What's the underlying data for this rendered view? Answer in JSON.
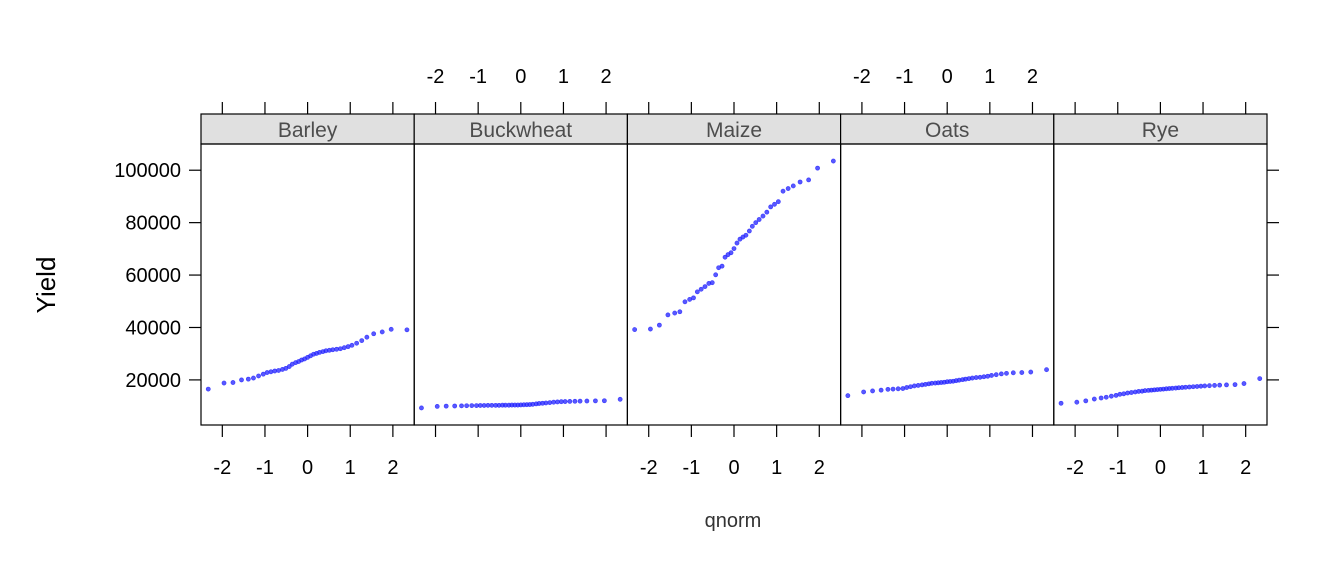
{
  "chart_data": {
    "type": "scatter",
    "xlabel": "qnorm",
    "ylabel": "Yield",
    "xlim": [
      -2.5,
      2.5
    ],
    "ylim": [
      2800,
      110000
    ],
    "x_ticks": [
      -2,
      -1,
      0,
      1,
      2
    ],
    "y_ticks": [
      20000,
      40000,
      60000,
      80000,
      100000
    ],
    "point_color": "#2020ff",
    "strip_color": "#e0e0e0",
    "panels": [
      {
        "name": "Barley",
        "x": [
          -2.33,
          -1.96,
          -1.75,
          -1.55,
          -1.39,
          -1.27,
          -1.15,
          -1.04,
          -0.95,
          -0.86,
          -0.77,
          -0.68,
          -0.59,
          -0.51,
          -0.43,
          -0.36,
          -0.28,
          -0.21,
          -0.14,
          -0.07,
          0.0,
          0.07,
          0.14,
          0.21,
          0.28,
          0.36,
          0.43,
          0.51,
          0.59,
          0.68,
          0.77,
          0.86,
          0.95,
          1.04,
          1.15,
          1.27,
          1.39,
          1.55,
          1.75,
          1.96,
          2.33
        ],
        "y": [
          16500,
          18800,
          19000,
          20000,
          20300,
          20700,
          21500,
          22200,
          22800,
          23100,
          23400,
          23600,
          24000,
          24400,
          25100,
          26000,
          26600,
          27000,
          27600,
          28000,
          28600,
          29200,
          29800,
          30100,
          30500,
          30800,
          31100,
          31300,
          31500,
          31700,
          31900,
          32300,
          32700,
          33200,
          34000,
          35000,
          36300,
          37600,
          38300,
          39300,
          39100
        ]
      },
      {
        "name": "Buckwheat",
        "x": [
          -2.33,
          -1.96,
          -1.75,
          -1.55,
          -1.39,
          -1.27,
          -1.15,
          -1.04,
          -0.95,
          -0.86,
          -0.77,
          -0.68,
          -0.59,
          -0.51,
          -0.43,
          -0.36,
          -0.28,
          -0.21,
          -0.14,
          -0.07,
          0.0,
          0.07,
          0.14,
          0.21,
          0.28,
          0.36,
          0.43,
          0.51,
          0.59,
          0.68,
          0.77,
          0.86,
          0.95,
          1.04,
          1.15,
          1.27,
          1.39,
          1.55,
          1.75,
          1.96,
          2.33
        ],
        "y": [
          9300,
          9900,
          10000,
          10050,
          10100,
          10150,
          10200,
          10200,
          10250,
          10250,
          10300,
          10300,
          10300,
          10300,
          10350,
          10350,
          10350,
          10400,
          10400,
          10400,
          10450,
          10500,
          10550,
          10600,
          10700,
          10850,
          11000,
          11100,
          11200,
          11350,
          11500,
          11600,
          11700,
          11750,
          11800,
          11850,
          11900,
          11950,
          12000,
          12050,
          12600
        ]
      },
      {
        "name": "Maize",
        "x": [
          -2.33,
          -1.96,
          -1.75,
          -1.55,
          -1.39,
          -1.27,
          -1.15,
          -1.04,
          -0.95,
          -0.86,
          -0.77,
          -0.68,
          -0.59,
          -0.51,
          -0.43,
          -0.36,
          -0.28,
          -0.21,
          -0.14,
          -0.07,
          0.0,
          0.07,
          0.14,
          0.21,
          0.28,
          0.36,
          0.43,
          0.51,
          0.59,
          0.68,
          0.77,
          0.86,
          0.95,
          1.04,
          1.15,
          1.27,
          1.39,
          1.55,
          1.75,
          1.96,
          2.33
        ],
        "y": [
          39200,
          39400,
          40900,
          44800,
          45500,
          46000,
          49800,
          50700,
          51300,
          53600,
          54600,
          55600,
          56800,
          57100,
          60100,
          62800,
          63400,
          66800,
          67800,
          68500,
          70100,
          72200,
          73700,
          74500,
          75200,
          76800,
          78600,
          80000,
          81200,
          82500,
          84000,
          86000,
          87000,
          88000,
          92000,
          93000,
          94000,
          95500,
          96300,
          100800,
          103500
        ]
      },
      {
        "name": "Oats",
        "x": [
          -2.33,
          -1.96,
          -1.75,
          -1.55,
          -1.39,
          -1.27,
          -1.15,
          -1.04,
          -0.95,
          -0.86,
          -0.77,
          -0.68,
          -0.59,
          -0.51,
          -0.43,
          -0.36,
          -0.28,
          -0.21,
          -0.14,
          -0.07,
          0.0,
          0.07,
          0.14,
          0.21,
          0.28,
          0.36,
          0.43,
          0.51,
          0.59,
          0.68,
          0.77,
          0.86,
          0.95,
          1.04,
          1.15,
          1.27,
          1.39,
          1.55,
          1.75,
          1.96,
          2.33
        ],
        "y": [
          14000,
          15400,
          15800,
          16100,
          16400,
          16500,
          16600,
          16700,
          17100,
          17400,
          17700,
          17900,
          18100,
          18300,
          18500,
          18700,
          18800,
          18900,
          19000,
          19100,
          19300,
          19400,
          19500,
          19700,
          19900,
          20100,
          20300,
          20500,
          20700,
          20900,
          21000,
          21200,
          21400,
          21700,
          22000,
          22300,
          22500,
          22700,
          22800,
          23000,
          23900
        ]
      },
      {
        "name": "Rye",
        "x": [
          -2.33,
          -1.96,
          -1.75,
          -1.55,
          -1.39,
          -1.27,
          -1.15,
          -1.04,
          -0.95,
          -0.86,
          -0.77,
          -0.68,
          -0.59,
          -0.51,
          -0.43,
          -0.36,
          -0.28,
          -0.21,
          -0.14,
          -0.07,
          0.0,
          0.07,
          0.14,
          0.21,
          0.28,
          0.36,
          0.43,
          0.51,
          0.59,
          0.68,
          0.77,
          0.86,
          0.95,
          1.04,
          1.15,
          1.27,
          1.39,
          1.55,
          1.75,
          1.96,
          2.33
        ],
        "y": [
          11100,
          11500,
          12000,
          12700,
          13100,
          13400,
          13800,
          14100,
          14500,
          14700,
          15000,
          15200,
          15400,
          15600,
          15700,
          15900,
          16000,
          16100,
          16200,
          16300,
          16400,
          16500,
          16600,
          16700,
          16800,
          16900,
          17000,
          17100,
          17200,
          17300,
          17400,
          17500,
          17600,
          17700,
          17800,
          17900,
          18000,
          18100,
          18200,
          18600,
          20500
        ]
      }
    ]
  }
}
